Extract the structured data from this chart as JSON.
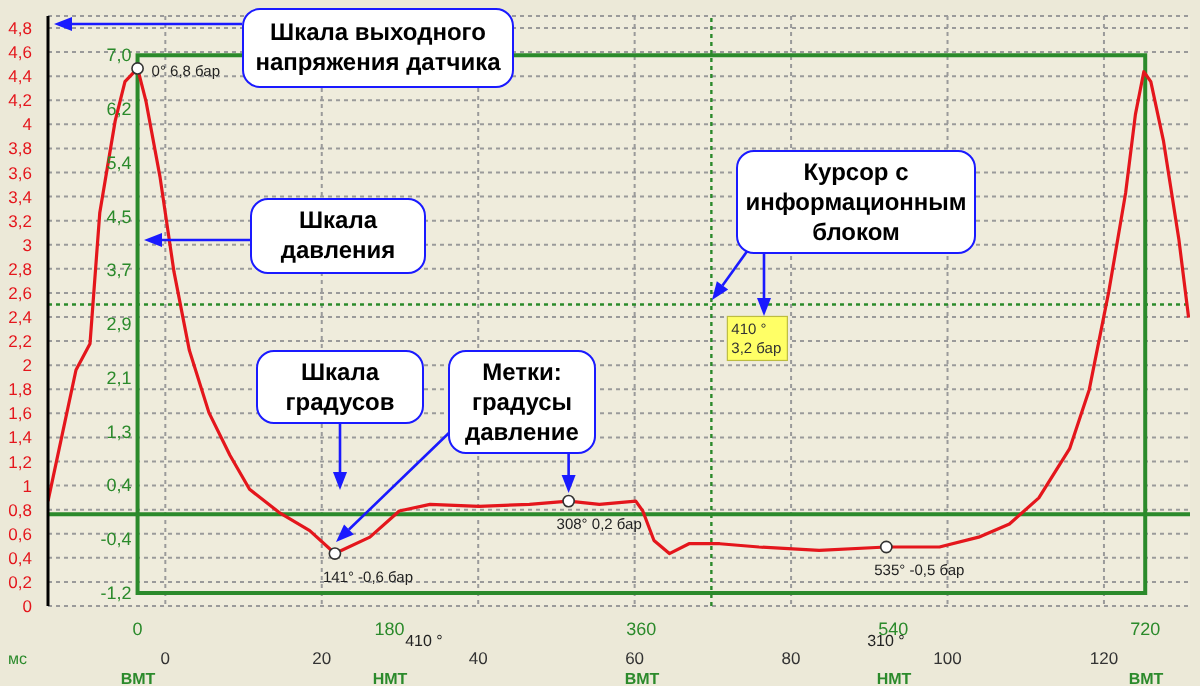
{
  "chart_data": {
    "type": "line",
    "x": [
      -64,
      -56,
      -44,
      -34,
      -27,
      -16,
      -9,
      0,
      6,
      16,
      26,
      37,
      51,
      66,
      80,
      101,
      123,
      141,
      166,
      187,
      209,
      244,
      280,
      308,
      330,
      356,
      361,
      369,
      380,
      394,
      416,
      444,
      487,
      535,
      573,
      601,
      623,
      644,
      666,
      680,
      694,
      706,
      713,
      719,
      724,
      733,
      744,
      751
    ],
    "series": [
      {
        "color": "#e4161c",
        "values": [
          0.2,
          1.0,
          2.2,
          2.6,
          4.6,
          6.0,
          6.6,
          6.8,
          6.3,
          5.15,
          3.7,
          2.5,
          1.55,
          0.9,
          0.38,
          0.03,
          -0.25,
          -0.6,
          -0.35,
          0.05,
          0.15,
          0.12,
          0.15,
          0.2,
          0.15,
          0.2,
          0.05,
          -0.4,
          -0.6,
          -0.45,
          -0.45,
          -0.5,
          -0.55,
          -0.5,
          -0.5,
          -0.35,
          -0.15,
          0.25,
          1.0,
          1.9,
          3.4,
          4.9,
          6.1,
          6.75,
          6.6,
          5.7,
          4.2,
          3.0
        ]
      }
    ],
    "xlim": [
      -64,
      752
    ],
    "xticks": [
      0,
      180,
      360,
      540,
      720
    ],
    "x2lim": [
      -15,
      131
    ],
    "x2ticks": [
      0,
      20,
      40,
      60,
      80,
      100,
      120
    ],
    "x2label": "мс",
    "ylim": [
      -1.4,
      7.6
    ],
    "yticks": [
      {
        "value": -1.2,
        "label": "-1,2"
      },
      {
        "value": -0.38,
        "label": "-0,4"
      },
      {
        "value": 0.44,
        "label": "0,4"
      },
      {
        "value": 1.26,
        "label": "1,3"
      },
      {
        "value": 2.08,
        "label": "2,1"
      },
      {
        "value": 2.9,
        "label": "2,9"
      },
      {
        "value": 3.72,
        "label": "3,7"
      },
      {
        "value": 4.54,
        "label": "4,5"
      },
      {
        "value": 5.36,
        "label": "5,4"
      },
      {
        "value": 6.18,
        "label": "6,2"
      },
      {
        "value": 7.0,
        "label": "7,0"
      }
    ],
    "y2lim": [
      0,
      4.9
    ],
    "y2ticks": [
      {
        "value": 0,
        "label": "0"
      },
      {
        "value": 0.2,
        "label": "0,2"
      },
      {
        "value": 0.4,
        "label": "0,4"
      },
      {
        "value": 0.6,
        "label": "0,6"
      },
      {
        "value": 0.8,
        "label": "0,8"
      },
      {
        "value": 1,
        "label": "1"
      },
      {
        "value": 1.2,
        "label": "1,2"
      },
      {
        "value": 1.4,
        "label": "1,4"
      },
      {
        "value": 1.6,
        "label": "1,6"
      },
      {
        "value": 1.8,
        "label": "1,8"
      },
      {
        "value": 2,
        "label": "2"
      },
      {
        "value": 2.2,
        "label": "2,2"
      },
      {
        "value": 2.4,
        "label": "2,4"
      },
      {
        "value": 2.6,
        "label": "2,6"
      },
      {
        "value": 2.8,
        "label": "2,8"
      },
      {
        "value": 3,
        "label": "3"
      },
      {
        "value": 3.2,
        "label": "3,2"
      },
      {
        "value": 3.4,
        "label": "3,4"
      },
      {
        "value": 3.6,
        "label": "3,6"
      },
      {
        "value": 3.8,
        "label": "3,8"
      },
      {
        "value": 4,
        "label": "4"
      },
      {
        "value": 4.2,
        "label": "4,2"
      },
      {
        "value": 4.4,
        "label": "4,4"
      },
      {
        "value": 4.6,
        "label": "4,6"
      },
      {
        "value": 4.8,
        "label": "4,8"
      }
    ],
    "grid": true,
    "marker": "none",
    "line_style": "solid",
    "ref_lines": [
      {
        "axis": "y",
        "value": 0,
        "color": "#2b8a2b",
        "line_style": "solid"
      },
      {
        "axis": "x",
        "value": 410,
        "color": "#2b8a2b",
        "line_style": "dotted"
      },
      {
        "axis": "y",
        "value": 3.2,
        "color": "#2b8a2b",
        "line_style": "dotted"
      }
    ],
    "annotations": [
      "Шкала выходного напряжения датчика",
      "Шкала давления",
      "Шкала градусов",
      {
        "text": "Метки: градусы давление",
        "x": 308,
        "y": 0.2
      },
      "Курсор с информационным блоком",
      {
        "text": "0° 6,8 бар",
        "x": 0,
        "y": 6.8
      },
      {
        "text": "141° -0,6 бар",
        "x": 141,
        "y": -0.6
      },
      {
        "text": "308° 0,2 бар",
        "x": 308,
        "y": 0.2
      },
      {
        "text": "535° -0,5 бар",
        "x": 535,
        "y": -0.5
      },
      {
        "text": "410 °\n3,2 бар",
        "x": 410,
        "y": 3.2
      },
      "ВМТ",
      "НМТ",
      "ВМТ",
      "НМТ",
      "ВМТ",
      "410 °",
      "310 °"
    ]
  }
}
